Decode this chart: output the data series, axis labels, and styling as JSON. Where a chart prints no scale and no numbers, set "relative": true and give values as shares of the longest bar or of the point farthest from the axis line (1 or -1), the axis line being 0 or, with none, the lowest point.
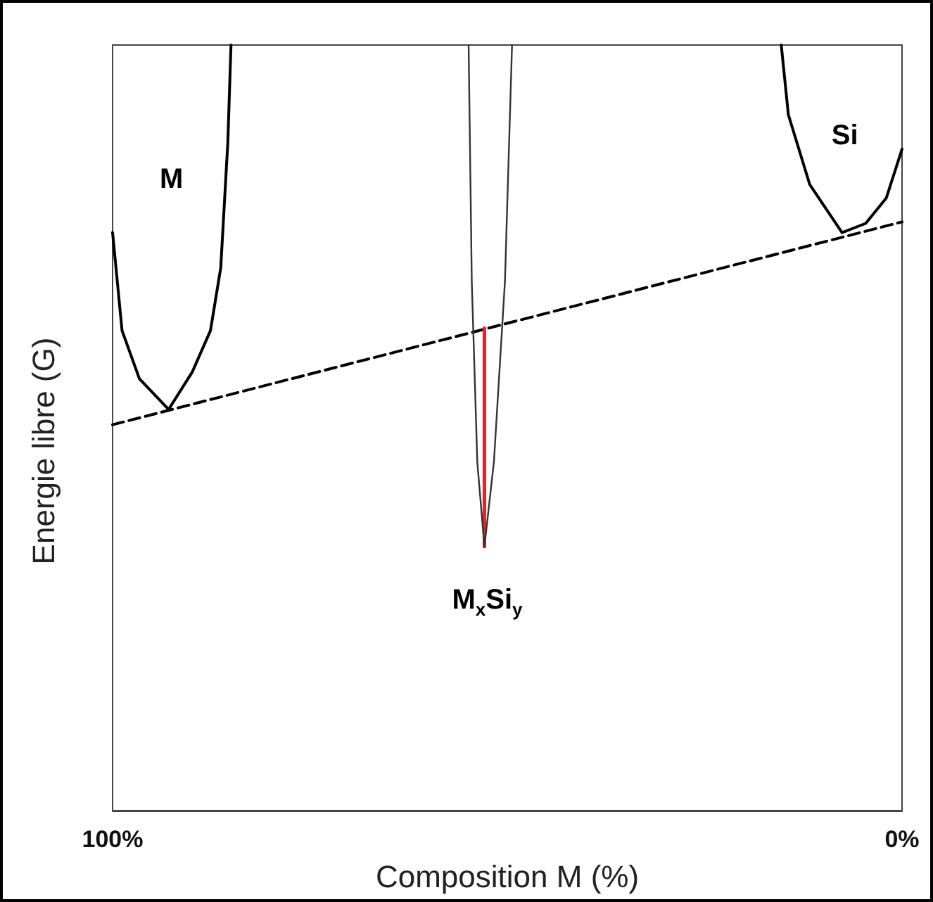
{
  "chart_data": {
    "type": "line",
    "relative": true,
    "xlabel": "Composition M (%)",
    "ylabel": "Energie libre (G)",
    "xlim": [
      100,
      0
    ],
    "xticks": [
      {
        "value": 100,
        "label": "100%"
      },
      {
        "value": 0,
        "label": "0%"
      }
    ],
    "marker": "none",
    "grid": false,
    "legend": false,
    "series": [
      {
        "name": "M",
        "color": "#000000",
        "x": [
          100,
          98.8,
          96.6,
          92.9,
          89.9,
          87.6,
          86.3,
          85.4,
          85.0
        ],
        "values": [
          0.755,
          0.627,
          0.564,
          0.524,
          0.573,
          0.627,
          0.709,
          0.873,
          1.0
        ]
      },
      {
        "name": "Si",
        "color": "#000000",
        "x": [
          15.3,
          14.4,
          11.7,
          7.6,
          4.6,
          2.0,
          0
        ],
        "values": [
          1.0,
          0.909,
          0.818,
          0.755,
          0.767,
          0.8,
          0.864
        ]
      },
      {
        "name": "M$_{x}$Si$_{y}$",
        "color": "#333333",
        "x": [
          54.9,
          54.5,
          53.8,
          52.9,
          51.7,
          50.3,
          49.4
        ],
        "values": [
          1.0,
          0.691,
          0.455,
          0.345,
          0.455,
          0.691,
          1.0
        ]
      },
      {
        "color": "#000000",
        "line_style": "dashed",
        "x": [
          100,
          0
        ],
        "values": [
          0.504,
          0.769
        ]
      },
      {
        "color": "#e8202a",
        "x": [
          52.9,
          52.9
        ],
        "values": [
          0.345,
          0.63
        ]
      }
    ]
  }
}
